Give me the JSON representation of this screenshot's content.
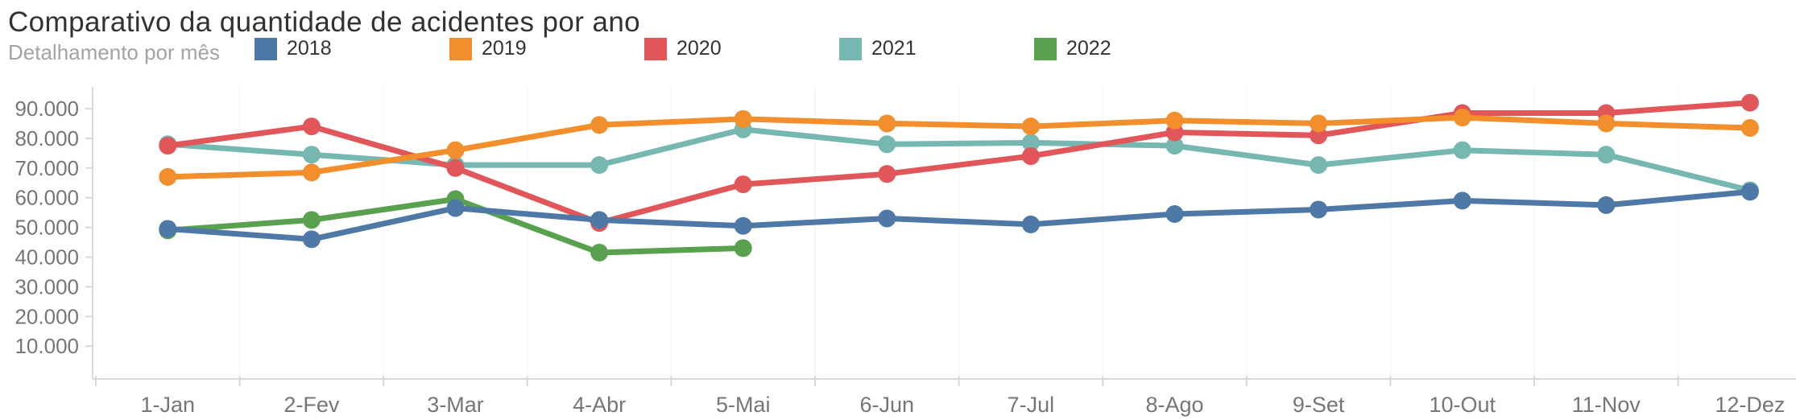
{
  "header": {
    "title": "Comparativo da quantidade de acidentes por ano",
    "subtitle": "Detalhamento por mês"
  },
  "colors": {
    "title_text": "#323232",
    "subtitle_text": "#a3a3a3",
    "tick_label": "#767676",
    "axis_line": "#d9d9d9",
    "grid_line": "rgba(0,0,0,0.05)"
  },
  "chart_data": {
    "type": "line",
    "title": "Comparativo da quantidade de acidentes por ano",
    "subtitle": "Detalhamento por mês",
    "xlabel": "",
    "ylabel": "",
    "legend_position": "top",
    "grid": "faint vertical month separators, no horizontal gridlines",
    "categories": [
      "1-Jan",
      "2-Fev",
      "3-Mar",
      "4-Abr",
      "5-Mai",
      "6-Jun",
      "7-Jul",
      "8-Ago",
      "9-Set",
      "10-Out",
      "11-Nov",
      "12-Dez"
    ],
    "y_ticks": [
      90000,
      80000,
      70000,
      60000,
      50000,
      40000,
      30000,
      20000,
      10000
    ],
    "y_tick_labels": [
      "90.000",
      "80.000",
      "70.000",
      "60.000",
      "50.000",
      "40.000",
      "30.000",
      "20.000",
      "10.000"
    ],
    "ylim": [
      0,
      95000
    ],
    "series": [
      {
        "name": "2018",
        "color": "#4e79a7",
        "values": [
          49500,
          46000,
          56500,
          52500,
          50500,
          53000,
          51000,
          54500,
          56000,
          59000,
          57500,
          62000
        ]
      },
      {
        "name": "2019",
        "color": "#f28e2b",
        "values": [
          67000,
          68500,
          76000,
          84500,
          86500,
          85000,
          84000,
          86000,
          85000,
          87000,
          85000,
          83500
        ]
      },
      {
        "name": "2020",
        "color": "#e15759",
        "values": [
          77500,
          84000,
          70000,
          51500,
          64500,
          68000,
          74000,
          82000,
          81000,
          88500,
          88500,
          92000
        ]
      },
      {
        "name": "2021",
        "color": "#76b7b2",
        "values": [
          78000,
          74500,
          71000,
          71000,
          83000,
          78000,
          78500,
          77500,
          71000,
          76000,
          74500,
          62500
        ]
      },
      {
        "name": "2022",
        "color": "#59a14f",
        "values": [
          49000,
          52500,
          59500,
          41500,
          43000,
          null,
          null,
          null,
          null,
          null,
          null,
          null
        ]
      }
    ]
  }
}
